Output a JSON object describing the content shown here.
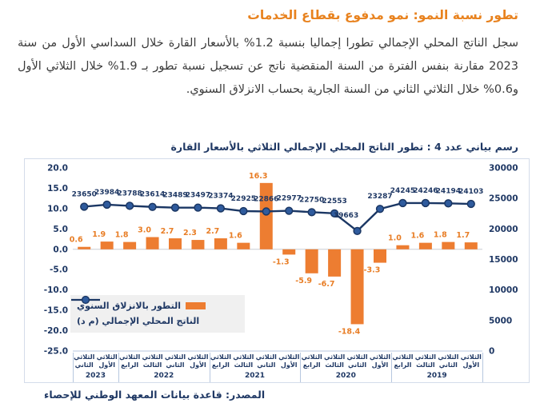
{
  "page": {
    "title": "تطور نسبة النمو: نمو مدفوع بقطاع الخدمات",
    "paragraph": "سجل الناتج المحلي الإجمالي تطورا إجماليا بنسبة 1.2% بالأسعار القارة خلال السداسي الأول من سنة 2023 مقارنة بنفس الفترة من السنة المنقضية ناتج عن تسجيل نسبة تطور بـ 1.9% خلال الثلاثي الأول و0.6% خلال الثلاثي الثاني من السنة الجارية بحساب الانزلاق السنوي.",
    "chart_title": "رسم بياني عدد 4 : تطور الناتج المحلي الإجمالي الثلاثي بالأسعار القارة",
    "source": "المصدر: قاعدة بيانات المعهد الوطني للإحصاء"
  },
  "colors": {
    "accent_orange": "#ED7D31",
    "navy": "#1F3864",
    "line_navy": "#1B3764",
    "marker_blue_fill": "#2F5B9D",
    "grid_gray": "#C9CDD4",
    "axis_line": "#B7C7DF",
    "legend_bg": "#F0F0F0"
  },
  "chart_data": {
    "type": "bar+line combo",
    "orientation": "RTL — newest quarter at the left, 2019 at the right",
    "quarter_prefix": "الثلاثي",
    "categories": [
      {
        "quarter": "الثاني",
        "year": "2023"
      },
      {
        "quarter": "الأول",
        "year": "2023"
      },
      {
        "quarter": "الرابع",
        "year": "2022"
      },
      {
        "quarter": "الثالث",
        "year": "2022"
      },
      {
        "quarter": "الثاني",
        "year": "2022"
      },
      {
        "quarter": "الأول",
        "year": "2022"
      },
      {
        "quarter": "الرابع",
        "year": "2021"
      },
      {
        "quarter": "الثالث",
        "year": "2021"
      },
      {
        "quarter": "الثاني",
        "year": "2021"
      },
      {
        "quarter": "الأول",
        "year": "2021"
      },
      {
        "quarter": "الرابع",
        "year": "2020"
      },
      {
        "quarter": "الثالث",
        "year": "2020"
      },
      {
        "quarter": "الثاني",
        "year": "2020"
      },
      {
        "quarter": "الأول",
        "year": "2020"
      },
      {
        "quarter": "الرابع",
        "year": "2019"
      },
      {
        "quarter": "الثالث",
        "year": "2019"
      },
      {
        "quarter": "الثاني",
        "year": "2019"
      },
      {
        "quarter": "الأول",
        "year": "2019"
      }
    ],
    "year_groups": [
      {
        "year": "2023",
        "count": 2
      },
      {
        "year": "2022",
        "count": 4
      },
      {
        "year": "2021",
        "count": 4
      },
      {
        "year": "2020",
        "count": 4
      },
      {
        "year": "2019",
        "count": 4
      }
    ],
    "series": [
      {
        "name": "التطور بالانزلاق السنوي",
        "type": "bar",
        "axis": "left",
        "color": "#ED7D31",
        "values": [
          0.6,
          1.9,
          1.8,
          3.0,
          2.7,
          2.3,
          2.7,
          1.6,
          16.3,
          -1.3,
          -5.9,
          -6.7,
          -18.4,
          -3.3,
          1.0,
          1.6,
          1.8,
          1.7
        ]
      },
      {
        "name": "الناتج المحلي الإجمالي (م د)",
        "type": "line",
        "axis": "right",
        "color": "#1B3764",
        "values": [
          23650,
          23984,
          23788,
          23614,
          23489,
          23497,
          23374,
          22925,
          22866,
          22977,
          22750,
          22553,
          19663,
          23287,
          24245,
          24246,
          24194,
          24103
        ]
      }
    ],
    "left_axis": {
      "min": -25,
      "max": 20,
      "ticks": [
        "20.0",
        "15.0",
        "10.0",
        "5.0",
        "0.0",
        "-5.0",
        "-10.0",
        "-15.0",
        "-20.0",
        "-25.0"
      ]
    },
    "right_axis": {
      "min": 0,
      "max": 30000,
      "ticks": [
        "30000",
        "25000",
        "20000",
        "15000",
        "10000",
        "5000",
        "0"
      ]
    },
    "legend_position": "inside plot, bottom-left",
    "grid": "zero line only"
  }
}
